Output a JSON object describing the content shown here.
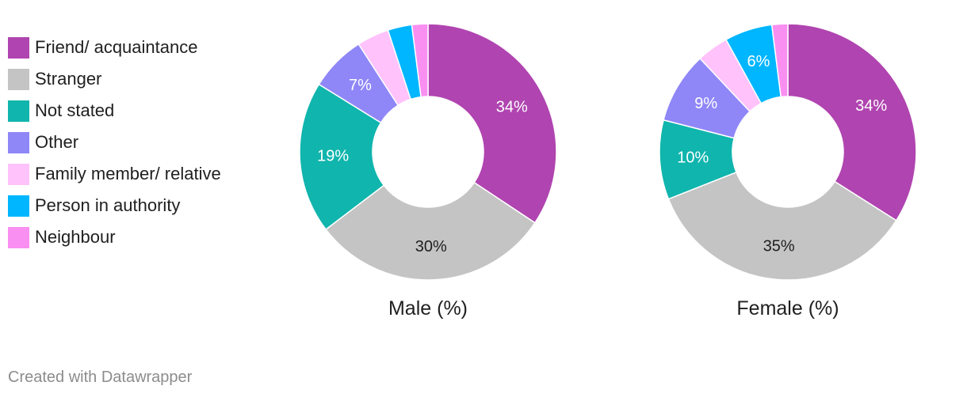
{
  "legend": {
    "items": [
      {
        "label": "Friend/ acquaintance",
        "color": "#b044b0"
      },
      {
        "label": "Stranger",
        "color": "#c4c4c4"
      },
      {
        "label": "Not stated",
        "color": "#10b5ad"
      },
      {
        "label": "Other",
        "color": "#8f87f7"
      },
      {
        "label": "Family member/ relative",
        "color": "#ffc2fb"
      },
      {
        "label": "Person in authority",
        "color": "#00b6ff"
      },
      {
        "label": "Neighbour",
        "color": "#f98ff1"
      }
    ]
  },
  "chart_data": [
    {
      "type": "pie",
      "title": "Male (%)",
      "categories": [
        "Friend/ acquaintance",
        "Stranger",
        "Not stated",
        "Other",
        "Family member/ relative",
        "Person in authority",
        "Neighbour"
      ],
      "values": [
        34,
        30,
        19,
        7,
        4,
        3,
        2
      ],
      "data_labels": [
        "34%",
        "30%",
        "19%",
        "7%",
        "",
        "",
        ""
      ]
    },
    {
      "type": "pie",
      "title": "Female (%)",
      "categories": [
        "Friend/ acquaintance",
        "Stranger",
        "Not stated",
        "Other",
        "Family member/ relative",
        "Person in authority",
        "Neighbour"
      ],
      "values": [
        34,
        35,
        10,
        9,
        4,
        6,
        2
      ],
      "data_labels": [
        "34%",
        "35%",
        "10%",
        "9%",
        "",
        "6%",
        ""
      ]
    }
  ],
  "footer": {
    "text": "Created with Datawrapper"
  }
}
